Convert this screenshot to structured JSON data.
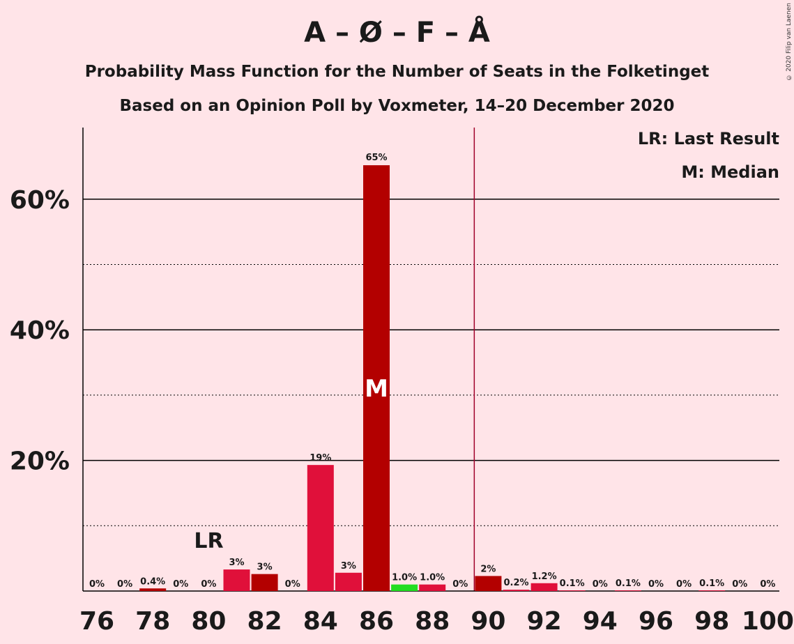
{
  "title": "A – Ø – F – Å",
  "subtitle1": "Probability Mass Function for the Number of Seats in the Folketinget",
  "subtitle2": "Based on an Opinion Poll by Voxmeter, 14–20 December 2020",
  "copyright": "© 2020 Filip van Laenen",
  "legend": {
    "lr": "LR: Last Result",
    "m": "M: Median"
  },
  "colors": {
    "background": "#FFE4E8",
    "bar_dark": "#B30000",
    "bar_crimson": "#E0103A",
    "bar_green": "#22DD22",
    "majority_line": "#A0002A"
  },
  "chart_data": {
    "type": "bar",
    "x": [
      76,
      77,
      78,
      79,
      80,
      81,
      82,
      83,
      84,
      85,
      86,
      87,
      88,
      89,
      90,
      91,
      92,
      93,
      94,
      95,
      96,
      97,
      98,
      99,
      100
    ],
    "values": [
      0,
      0,
      0.4,
      0,
      0,
      3.3,
      2.6,
      0,
      19.3,
      2.8,
      65.2,
      1.0,
      1.0,
      0,
      2.3,
      0.2,
      1.2,
      0.1,
      0,
      0.1,
      0,
      0,
      0.1,
      0,
      0
    ],
    "data_labels": [
      "0%",
      "0%",
      "0.4%",
      "0%",
      "0%",
      "3%",
      "3%",
      "0%",
      "19%",
      "3%",
      "65%",
      "1.0%",
      "1.0%",
      "0%",
      "2%",
      "0.2%",
      "1.2%",
      "0.1%",
      "0%",
      "0.1%",
      "0%",
      "0%",
      "0.1%",
      "0%",
      "0%"
    ],
    "bar_colors": [
      "crimson",
      "crimson",
      "dark",
      "crimson",
      "crimson",
      "crimson",
      "dark",
      "crimson",
      "crimson",
      "crimson",
      "dark",
      "green",
      "crimson",
      "crimson",
      "dark",
      "crimson",
      "crimson",
      "crimson",
      "crimson",
      "crimson",
      "crimson",
      "crimson",
      "crimson",
      "crimson",
      "crimson"
    ],
    "x_tick_labels": [
      "76",
      "78",
      "80",
      "82",
      "84",
      "86",
      "88",
      "90",
      "92",
      "94",
      "96",
      "98",
      "100"
    ],
    "y_tick_labels": [
      "20%",
      "40%",
      "60%"
    ],
    "ylim": [
      0,
      70
    ],
    "grid": "solid at 20/40/60, dotted at 10/30/50",
    "last_result_seat": 81,
    "last_result_label": "LR",
    "median_seat": 86,
    "median_label": "M",
    "majority_line_after": 89.5
  }
}
